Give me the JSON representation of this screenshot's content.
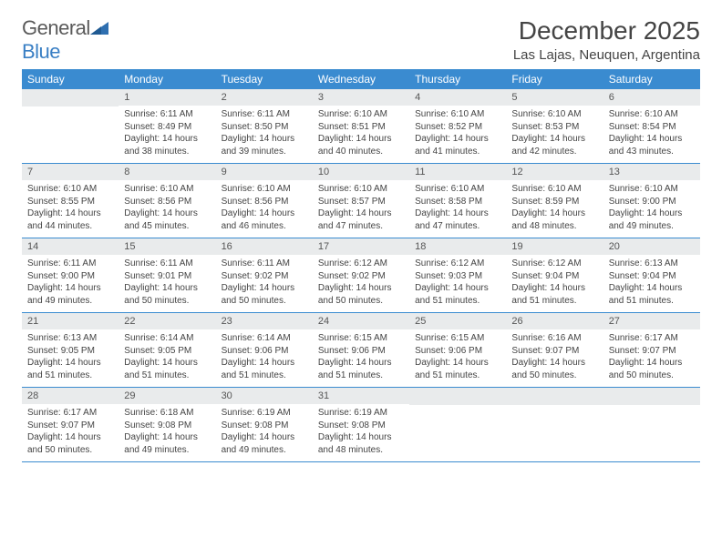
{
  "brand": {
    "name_part1": "General",
    "name_part2": "Blue",
    "triangle_color": "#2f6fb0"
  },
  "header": {
    "month_title": "December 2025",
    "location": "Las Lajas, Neuquen, Argentina"
  },
  "colors": {
    "header_bg": "#3a8bd0",
    "daynum_bg": "#e9ebec",
    "rule": "#3a8bd0",
    "text": "#444444"
  },
  "day_labels": [
    "Sunday",
    "Monday",
    "Tuesday",
    "Wednesday",
    "Thursday",
    "Friday",
    "Saturday"
  ],
  "weeks": [
    [
      {
        "n": "",
        "s": "",
        "t": "",
        "d": ""
      },
      {
        "n": "1",
        "s": "Sunrise: 6:11 AM",
        "t": "Sunset: 8:49 PM",
        "d": "Daylight: 14 hours and 38 minutes."
      },
      {
        "n": "2",
        "s": "Sunrise: 6:11 AM",
        "t": "Sunset: 8:50 PM",
        "d": "Daylight: 14 hours and 39 minutes."
      },
      {
        "n": "3",
        "s": "Sunrise: 6:10 AM",
        "t": "Sunset: 8:51 PM",
        "d": "Daylight: 14 hours and 40 minutes."
      },
      {
        "n": "4",
        "s": "Sunrise: 6:10 AM",
        "t": "Sunset: 8:52 PM",
        "d": "Daylight: 14 hours and 41 minutes."
      },
      {
        "n": "5",
        "s": "Sunrise: 6:10 AM",
        "t": "Sunset: 8:53 PM",
        "d": "Daylight: 14 hours and 42 minutes."
      },
      {
        "n": "6",
        "s": "Sunrise: 6:10 AM",
        "t": "Sunset: 8:54 PM",
        "d": "Daylight: 14 hours and 43 minutes."
      }
    ],
    [
      {
        "n": "7",
        "s": "Sunrise: 6:10 AM",
        "t": "Sunset: 8:55 PM",
        "d": "Daylight: 14 hours and 44 minutes."
      },
      {
        "n": "8",
        "s": "Sunrise: 6:10 AM",
        "t": "Sunset: 8:56 PM",
        "d": "Daylight: 14 hours and 45 minutes."
      },
      {
        "n": "9",
        "s": "Sunrise: 6:10 AM",
        "t": "Sunset: 8:56 PM",
        "d": "Daylight: 14 hours and 46 minutes."
      },
      {
        "n": "10",
        "s": "Sunrise: 6:10 AM",
        "t": "Sunset: 8:57 PM",
        "d": "Daylight: 14 hours and 47 minutes."
      },
      {
        "n": "11",
        "s": "Sunrise: 6:10 AM",
        "t": "Sunset: 8:58 PM",
        "d": "Daylight: 14 hours and 47 minutes."
      },
      {
        "n": "12",
        "s": "Sunrise: 6:10 AM",
        "t": "Sunset: 8:59 PM",
        "d": "Daylight: 14 hours and 48 minutes."
      },
      {
        "n": "13",
        "s": "Sunrise: 6:10 AM",
        "t": "Sunset: 9:00 PM",
        "d": "Daylight: 14 hours and 49 minutes."
      }
    ],
    [
      {
        "n": "14",
        "s": "Sunrise: 6:11 AM",
        "t": "Sunset: 9:00 PM",
        "d": "Daylight: 14 hours and 49 minutes."
      },
      {
        "n": "15",
        "s": "Sunrise: 6:11 AM",
        "t": "Sunset: 9:01 PM",
        "d": "Daylight: 14 hours and 50 minutes."
      },
      {
        "n": "16",
        "s": "Sunrise: 6:11 AM",
        "t": "Sunset: 9:02 PM",
        "d": "Daylight: 14 hours and 50 minutes."
      },
      {
        "n": "17",
        "s": "Sunrise: 6:12 AM",
        "t": "Sunset: 9:02 PM",
        "d": "Daylight: 14 hours and 50 minutes."
      },
      {
        "n": "18",
        "s": "Sunrise: 6:12 AM",
        "t": "Sunset: 9:03 PM",
        "d": "Daylight: 14 hours and 51 minutes."
      },
      {
        "n": "19",
        "s": "Sunrise: 6:12 AM",
        "t": "Sunset: 9:04 PM",
        "d": "Daylight: 14 hours and 51 minutes."
      },
      {
        "n": "20",
        "s": "Sunrise: 6:13 AM",
        "t": "Sunset: 9:04 PM",
        "d": "Daylight: 14 hours and 51 minutes."
      }
    ],
    [
      {
        "n": "21",
        "s": "Sunrise: 6:13 AM",
        "t": "Sunset: 9:05 PM",
        "d": "Daylight: 14 hours and 51 minutes."
      },
      {
        "n": "22",
        "s": "Sunrise: 6:14 AM",
        "t": "Sunset: 9:05 PM",
        "d": "Daylight: 14 hours and 51 minutes."
      },
      {
        "n": "23",
        "s": "Sunrise: 6:14 AM",
        "t": "Sunset: 9:06 PM",
        "d": "Daylight: 14 hours and 51 minutes."
      },
      {
        "n": "24",
        "s": "Sunrise: 6:15 AM",
        "t": "Sunset: 9:06 PM",
        "d": "Daylight: 14 hours and 51 minutes."
      },
      {
        "n": "25",
        "s": "Sunrise: 6:15 AM",
        "t": "Sunset: 9:06 PM",
        "d": "Daylight: 14 hours and 51 minutes."
      },
      {
        "n": "26",
        "s": "Sunrise: 6:16 AM",
        "t": "Sunset: 9:07 PM",
        "d": "Daylight: 14 hours and 50 minutes."
      },
      {
        "n": "27",
        "s": "Sunrise: 6:17 AM",
        "t": "Sunset: 9:07 PM",
        "d": "Daylight: 14 hours and 50 minutes."
      }
    ],
    [
      {
        "n": "28",
        "s": "Sunrise: 6:17 AM",
        "t": "Sunset: 9:07 PM",
        "d": "Daylight: 14 hours and 50 minutes."
      },
      {
        "n": "29",
        "s": "Sunrise: 6:18 AM",
        "t": "Sunset: 9:08 PM",
        "d": "Daylight: 14 hours and 49 minutes."
      },
      {
        "n": "30",
        "s": "Sunrise: 6:19 AM",
        "t": "Sunset: 9:08 PM",
        "d": "Daylight: 14 hours and 49 minutes."
      },
      {
        "n": "31",
        "s": "Sunrise: 6:19 AM",
        "t": "Sunset: 9:08 PM",
        "d": "Daylight: 14 hours and 48 minutes."
      },
      {
        "n": "",
        "s": "",
        "t": "",
        "d": ""
      },
      {
        "n": "",
        "s": "",
        "t": "",
        "d": ""
      },
      {
        "n": "",
        "s": "",
        "t": "",
        "d": ""
      }
    ]
  ]
}
